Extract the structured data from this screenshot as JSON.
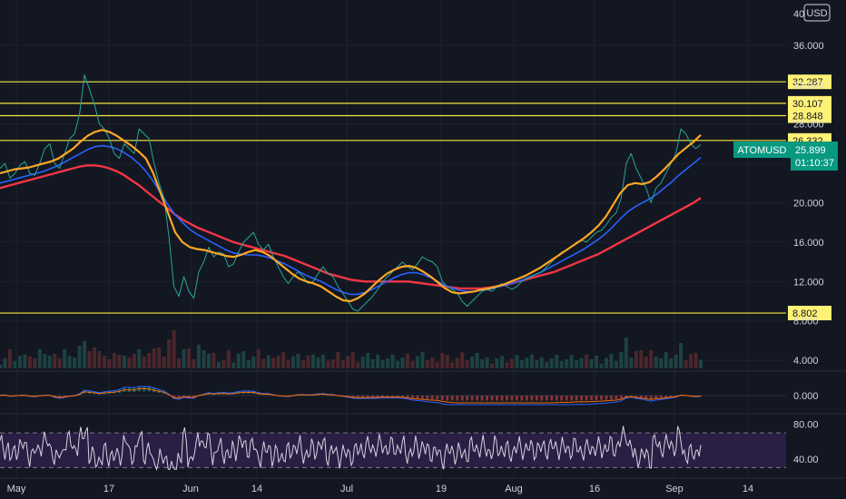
{
  "chart_data": {
    "type": "line",
    "symbol": "ATOMUSD",
    "currency": "USD",
    "last_price": "25.899",
    "countdown": "01:10:37",
    "price_axis_ticks": [
      "36.000",
      "32.000",
      "28.000",
      "24.000",
      "20.000",
      "16.000",
      "12.000",
      "8.000",
      "4.000"
    ],
    "price_axis_top_partial": "40",
    "ylim": [
      3,
      40.6
    ],
    "horizontal_levels": [
      {
        "label": "32.287",
        "value": 32.287
      },
      {
        "label": "30.107",
        "value": 30.107
      },
      {
        "label": "28.848",
        "value": 28.848
      },
      {
        "label": "26.332",
        "value": 26.332
      },
      {
        "label": "8.802",
        "value": 8.802
      }
    ],
    "x_axis_labels": [
      "May",
      "17",
      "Jun",
      "14",
      "Jul",
      "19",
      "Aug",
      "16",
      "Sep",
      "14"
    ],
    "macd_ticks": [
      "0.000"
    ],
    "rsi_ticks": [
      "80.00",
      "40.00"
    ],
    "rsi_bands": [
      70,
      30
    ],
    "series": [
      {
        "name": "price",
        "values": [
          23.5,
          24.0,
          22.5,
          23.0,
          23.8,
          24.2,
          23.0,
          22.8,
          24.0,
          25.5,
          26.0,
          24.0,
          23.5,
          25.0,
          26.5,
          27.0,
          29.0,
          33.0,
          31.5,
          30.0,
          28.0,
          27.5,
          26.5,
          25.0,
          24.5,
          26.0,
          25.5,
          25.0,
          27.5,
          27.0,
          26.5,
          24.0,
          22.0,
          20.5,
          16.5,
          11.5,
          10.5,
          12.5,
          11.0,
          10.3,
          13.0,
          14.0,
          15.5,
          14.5,
          15.0,
          14.8,
          13.5,
          13.8,
          15.0,
          16.0,
          16.5,
          17.0,
          15.8,
          15.2,
          15.8,
          14.5,
          13.5,
          12.5,
          11.8,
          12.5,
          13.0,
          12.5,
          11.8,
          12.0,
          12.8,
          13.5,
          12.8,
          12.5,
          11.5,
          10.8,
          10.0,
          9.2,
          9.0,
          9.5,
          10.0,
          10.5,
          11.2,
          12.0,
          12.5,
          13.0,
          13.5,
          14.0,
          13.5,
          13.2,
          13.8,
          14.5,
          14.2,
          14.0,
          13.5,
          12.0,
          11.5,
          11.2,
          10.8,
          10.0,
          9.5,
          10.0,
          10.5,
          11.0,
          11.2,
          11.0,
          11.5,
          11.8,
          11.5,
          11.2,
          11.5,
          12.0,
          12.3,
          12.5,
          12.8,
          13.0,
          13.5,
          14.0,
          14.5,
          15.0,
          15.2,
          15.5,
          16.0,
          16.2,
          16.0,
          16.5,
          17.0,
          17.2,
          17.8,
          18.5,
          19.0,
          20.5,
          24.0,
          25.0,
          23.5,
          22.5,
          21.5,
          20.0,
          21.5,
          22.0,
          23.0,
          24.0,
          25.0,
          27.5,
          27.0,
          26.0,
          25.5,
          25.899
        ]
      },
      {
        "name": "ma-short",
        "values": [
          23.0,
          23.2,
          23.4,
          23.5,
          23.6,
          23.8,
          24.0,
          24.2,
          24.5,
          25.0,
          25.5,
          26.2,
          26.8,
          27.2,
          27.4,
          27.2,
          26.8,
          26.3,
          25.8,
          25.2,
          24.5,
          23.0,
          21.0,
          19.0,
          17.0,
          16.0,
          15.5,
          15.3,
          15.2,
          15.0,
          14.8,
          14.6,
          14.5,
          14.7,
          15.0,
          15.2,
          15.0,
          14.6,
          14.0,
          13.4,
          12.8,
          12.3,
          12.0,
          11.8,
          11.5,
          11.0,
          10.5,
          10.1,
          10.0,
          10.3,
          10.8,
          11.5,
          12.2,
          12.8,
          13.2,
          13.5,
          13.6,
          13.4,
          13.0,
          12.5,
          11.9,
          11.3,
          10.9,
          10.8,
          10.9,
          11.0,
          11.2,
          11.3,
          11.5,
          11.7,
          12.0,
          12.3,
          12.6,
          13.0,
          13.4,
          13.9,
          14.4,
          14.9,
          15.4,
          15.9,
          16.4,
          17.0,
          17.7,
          18.6,
          19.8,
          21.0,
          21.8,
          22.0,
          21.9,
          22.1,
          22.7,
          23.4,
          24.2,
          25.0,
          25.6,
          26.2,
          26.9
        ]
      },
      {
        "name": "ma-mid",
        "values": [
          22.0,
          22.2,
          22.4,
          22.6,
          22.8,
          23.0,
          23.2,
          23.5,
          23.8,
          24.2,
          24.6,
          25.0,
          25.4,
          25.7,
          25.8,
          25.7,
          25.5,
          25.1,
          24.6,
          24.0,
          23.2,
          22.2,
          21.0,
          19.8,
          18.8,
          18.0,
          17.3,
          16.8,
          16.4,
          16.0,
          15.6,
          15.2,
          14.9,
          14.8,
          14.7,
          14.7,
          14.6,
          14.4,
          14.1,
          13.8,
          13.4,
          13.0,
          12.6,
          12.3,
          12.0,
          11.6,
          11.2,
          10.9,
          10.7,
          10.7,
          10.9,
          11.2,
          11.6,
          12.0,
          12.4,
          12.7,
          12.9,
          12.9,
          12.7,
          12.4,
          12.0,
          11.6,
          11.3,
          11.1,
          11.0,
          11.0,
          11.1,
          11.2,
          11.4,
          11.6,
          11.8,
          12.0,
          12.3,
          12.6,
          12.9,
          13.3,
          13.7,
          14.1,
          14.5,
          14.9,
          15.3,
          15.8,
          16.3,
          16.9,
          17.6,
          18.4,
          19.1,
          19.6,
          20.0,
          20.4,
          20.9,
          21.5,
          22.1,
          22.8,
          23.4,
          24.0,
          24.6
        ]
      },
      {
        "name": "ma-long",
        "values": [
          21.5,
          21.7,
          21.9,
          22.1,
          22.3,
          22.5,
          22.7,
          22.9,
          23.1,
          23.3,
          23.5,
          23.7,
          23.8,
          23.8,
          23.7,
          23.5,
          23.2,
          22.8,
          22.3,
          21.8,
          21.2,
          20.6,
          20.0,
          19.4,
          18.8,
          18.3,
          17.9,
          17.5,
          17.2,
          16.9,
          16.6,
          16.3,
          16.0,
          15.8,
          15.6,
          15.4,
          15.2,
          15.0,
          14.8,
          14.6,
          14.3,
          14.0,
          13.7,
          13.4,
          13.1,
          12.8,
          12.6,
          12.4,
          12.2,
          12.1,
          12.0,
          12.0,
          12.0,
          12.0,
          12.0,
          12.0,
          12.0,
          11.9,
          11.8,
          11.7,
          11.6,
          11.5,
          11.4,
          11.3,
          11.3,
          11.3,
          11.3,
          11.4,
          11.5,
          11.6,
          11.8,
          12.0,
          12.2,
          12.4,
          12.6,
          12.8,
          13.0,
          13.3,
          13.6,
          13.9,
          14.2,
          14.5,
          14.8,
          15.2,
          15.6,
          16.0,
          16.4,
          16.8,
          17.2,
          17.6,
          18.0,
          18.4,
          18.8,
          19.2,
          19.6,
          20.0,
          20.5
        ]
      }
    ],
    "colors": {
      "background": "#131722",
      "grid": "#1e222d",
      "level_line": "#f5e642",
      "level_tag_bg": "#fff176",
      "price_line": "#26a69a",
      "ma_short": "#ffa726",
      "ma_mid": "#2962ff",
      "ma_long": "#f23645",
      "last_price_tag": "#089981",
      "rsi_line": "#d1d4dc",
      "rsi_band_fill": "#2a1e45",
      "text": "#d1d4dc"
    }
  }
}
